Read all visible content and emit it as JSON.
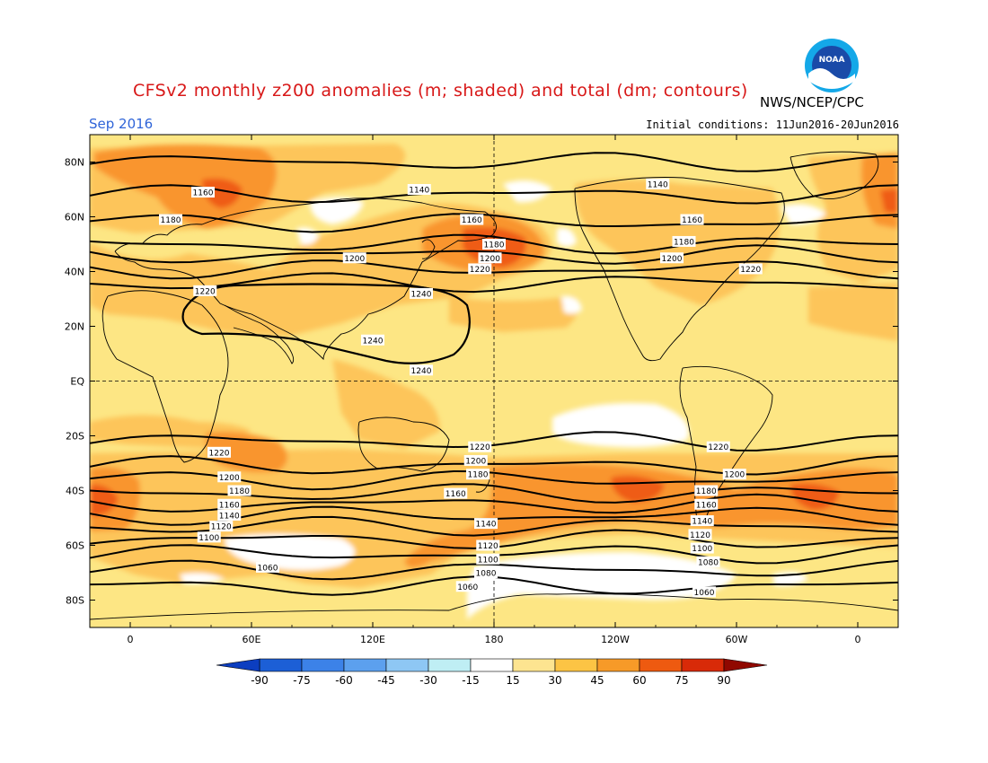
{
  "header": {
    "title": "CFSv2 monthly z200 anomalies (m; shaded) and total (dm; contours)",
    "agency": "NWS/NCEP/CPC",
    "month": "Sep 2016",
    "initial_conditions": "Initial conditions: 11Jun2016-20Jun2016",
    "logo_text": "NOAA"
  },
  "map": {
    "lat_labels": [
      "80N",
      "60N",
      "40N",
      "20N",
      "EQ",
      "20S",
      "40S",
      "60S",
      "80S"
    ],
    "lat_values": [
      80,
      60,
      40,
      20,
      0,
      -20,
      -40,
      -60,
      -80
    ],
    "lon_labels": [
      "0",
      "60E",
      "120E",
      "180",
      "120W",
      "60W",
      "0"
    ],
    "lon_values": [
      0,
      60,
      120,
      180,
      240,
      300,
      360
    ],
    "contour_labels": [
      {
        "text": "1160",
        "lon": 36,
        "lat": 69
      },
      {
        "text": "1180",
        "lon": 20,
        "lat": 59
      },
      {
        "text": "1200",
        "lon": 111,
        "lat": 45
      },
      {
        "text": "1220",
        "lon": 37,
        "lat": 33
      },
      {
        "text": "1240",
        "lon": 144,
        "lat": 32
      },
      {
        "text": "1240",
        "lon": 120,
        "lat": 15
      },
      {
        "text": "1240",
        "lon": 144,
        "lat": 4
      },
      {
        "text": "1140",
        "lon": 143,
        "lat": 70
      },
      {
        "text": "1160",
        "lon": 169,
        "lat": 59
      },
      {
        "text": "1180",
        "lon": 180,
        "lat": 50
      },
      {
        "text": "1200",
        "lon": 178,
        "lat": 45
      },
      {
        "text": "1220",
        "lon": 173,
        "lat": 41
      },
      {
        "text": "1140",
        "lon": 261,
        "lat": 72
      },
      {
        "text": "1160",
        "lon": 278,
        "lat": 59
      },
      {
        "text": "1180",
        "lon": 274,
        "lat": 51
      },
      {
        "text": "1200",
        "lon": 268,
        "lat": 45
      },
      {
        "text": "1220",
        "lon": 307,
        "lat": 41
      },
      {
        "text": "1220",
        "lon": 44,
        "lat": -26
      },
      {
        "text": "1200",
        "lon": 49,
        "lat": -35
      },
      {
        "text": "1180",
        "lon": 54,
        "lat": -40
      },
      {
        "text": "1160",
        "lon": 49,
        "lat": -45
      },
      {
        "text": "1140",
        "lon": 49,
        "lat": -49
      },
      {
        "text": "1120",
        "lon": 45,
        "lat": -53
      },
      {
        "text": "1100",
        "lon": 39,
        "lat": -57
      },
      {
        "text": "1060",
        "lon": 68,
        "lat": -68
      },
      {
        "text": "1220",
        "lon": 173,
        "lat": -24
      },
      {
        "text": "1200",
        "lon": 171,
        "lat": -29
      },
      {
        "text": "1180",
        "lon": 172,
        "lat": -34
      },
      {
        "text": "1160",
        "lon": 161,
        "lat": -41
      },
      {
        "text": "1140",
        "lon": 176,
        "lat": -52
      },
      {
        "text": "1120",
        "lon": 177,
        "lat": -60
      },
      {
        "text": "1100",
        "lon": 177,
        "lat": -65
      },
      {
        "text": "1080",
        "lon": 176,
        "lat": -70
      },
      {
        "text": "1060",
        "lon": 167,
        "lat": -75
      },
      {
        "text": "1220",
        "lon": 291,
        "lat": -24
      },
      {
        "text": "1200",
        "lon": 299,
        "lat": -34
      },
      {
        "text": "1180",
        "lon": 285,
        "lat": -40
      },
      {
        "text": "1160",
        "lon": 285,
        "lat": -45
      },
      {
        "text": "1140",
        "lon": 283,
        "lat": -51
      },
      {
        "text": "1120",
        "lon": 282,
        "lat": -56
      },
      {
        "text": "1100",
        "lon": 283,
        "lat": -61
      },
      {
        "text": "1080",
        "lon": 286,
        "lat": -66
      },
      {
        "text": "1060",
        "lon": 284,
        "lat": -77
      }
    ]
  },
  "colorbar": {
    "labels": [
      "-90",
      "-75",
      "-60",
      "-45",
      "-30",
      "-15",
      "15",
      "30",
      "45",
      "60",
      "75",
      "90"
    ],
    "colors": [
      "#1c5fd6",
      "#3c82e8",
      "#5ca0ee",
      "#8ec7f4",
      "#bfeef4",
      "#ffffff",
      "#fde490",
      "#fcc444",
      "#f79a28",
      "#ee5a10",
      "#d82a08",
      "#b01004"
    ],
    "under_color": "#0c3ec0",
    "over_color": "#900800"
  },
  "colors": {
    "shade_15_30": "#fde684",
    "shade_30_45": "#fdc55a",
    "shade_45_60": "#f9952e",
    "shade_60_75": "#ef5c14",
    "neutral": "#ffffff",
    "contour": "#000000",
    "coast": "#000000"
  }
}
